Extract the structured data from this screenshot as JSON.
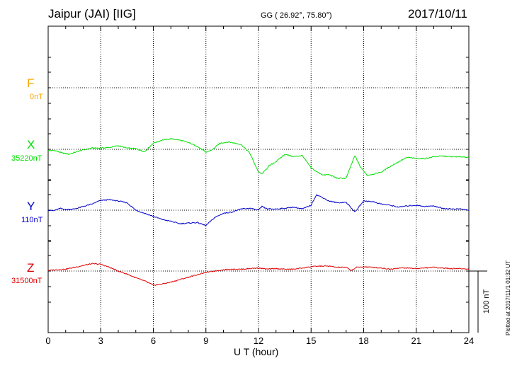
{
  "header": {
    "station": "Jaipur (JAI)  [IIG]",
    "coords": "GG ( 26.92°,  75.80°)",
    "date": "2017/10/11"
  },
  "footer": {
    "plotted": "Plotted at 2017/11/1 01:32 UT",
    "scale_bar": "100 nT"
  },
  "colors": {
    "F": "#ffa500",
    "X": "#00e000",
    "Y": "#0000cc",
    "Z": "#e00000"
  },
  "chart_data": {
    "type": "line",
    "xlabel": "U T (hour)",
    "xlim": [
      0,
      24
    ],
    "xticks": [
      0,
      3,
      6,
      9,
      12,
      15,
      18,
      21,
      24
    ],
    "unit_scale_nT": 100,
    "grid": true,
    "series": [
      {
        "name": "F",
        "baseline": "0nT",
        "x": [],
        "values": []
      },
      {
        "name": "X",
        "baseline": "35220nT",
        "x": [
          0,
          0.4,
          0.8,
          1.2,
          1.5,
          2,
          2.5,
          3,
          3.5,
          4,
          4.5,
          5,
          5.5,
          6,
          6.5,
          7,
          7.5,
          8,
          8.5,
          9,
          9.4,
          9.8,
          10.3,
          11,
          11.5,
          12,
          12.2,
          12.6,
          13,
          13.5,
          14,
          14.5,
          15,
          15.3,
          15.7,
          16,
          16.5,
          17,
          17.2,
          17.5,
          17.8,
          18.2,
          18.6,
          19,
          19.5,
          20,
          20.5,
          21,
          21.5,
          22,
          22.5,
          23,
          23.5,
          24
        ],
        "values": [
          -2,
          -2,
          -6,
          -8,
          -5,
          -1,
          2,
          2,
          3,
          6,
          2,
          1,
          -4,
          10,
          15,
          17,
          15,
          11,
          5,
          -5,
          0,
          10,
          12,
          8,
          -6,
          -37,
          -40,
          -27,
          -20,
          -8,
          -12,
          -10,
          -30,
          -36,
          -42,
          -41,
          -47,
          -47,
          -32,
          -10,
          -28,
          -42,
          -40,
          -37,
          -28,
          -20,
          -13,
          -15,
          -15,
          -12,
          -11,
          -12,
          -12,
          -13
        ]
      },
      {
        "name": "Y",
        "baseline": "110nT",
        "x": [
          0,
          0.3,
          0.7,
          1,
          1.5,
          2,
          2.5,
          3,
          3.5,
          4,
          4.5,
          5,
          5.5,
          6,
          6.5,
          7,
          7.5,
          8,
          8.5,
          9,
          9.5,
          10,
          10.5,
          11,
          11.5,
          12,
          12.2,
          12.5,
          13,
          13.5,
          14,
          14.5,
          15,
          15.3,
          15.7,
          16,
          16.5,
          17,
          17.5,
          18,
          18.5,
          19,
          19.5,
          20,
          20.5,
          21,
          21.5,
          22,
          22.5,
          23,
          23.5,
          24
        ],
        "values": [
          0,
          -1,
          3,
          1,
          2,
          6,
          10,
          16,
          17,
          15,
          12,
          0,
          -5,
          -10,
          -15,
          -18,
          -22,
          -21,
          -20,
          -25,
          -12,
          -5,
          -3,
          2,
          3,
          0,
          6,
          2,
          2,
          3,
          5,
          2,
          8,
          25,
          20,
          15,
          12,
          13,
          -3,
          15,
          14,
          10,
          8,
          5,
          7,
          8,
          6,
          7,
          3,
          2,
          2,
          0
        ]
      },
      {
        "name": "Z",
        "baseline": "31500nT",
        "x": [
          0,
          0.5,
          1,
          1.5,
          2,
          2.5,
          3,
          3.5,
          4,
          4.5,
          5,
          5.5,
          6,
          6.5,
          7,
          7.5,
          8,
          8.5,
          9,
          9.5,
          10,
          10.5,
          11,
          11.5,
          12,
          12.5,
          13,
          13.5,
          14,
          14.5,
          15,
          15.5,
          16,
          16.5,
          17,
          17.3,
          17.6,
          18,
          18.5,
          19,
          19.5,
          20,
          20.5,
          21,
          21.5,
          22,
          22.5,
          23,
          23.5,
          24
        ],
        "values": [
          1,
          2,
          3,
          6,
          9,
          12,
          11,
          6,
          0,
          -5,
          -11,
          -16,
          -23,
          -21,
          -18,
          -14,
          -10,
          -6,
          -2,
          0,
          2,
          3,
          3,
          4,
          5,
          3,
          4,
          3,
          3,
          5,
          7,
          8,
          8,
          6,
          6,
          1,
          6,
          7,
          6,
          5,
          3,
          5,
          5,
          4,
          5,
          6,
          5,
          4,
          4,
          3
        ]
      }
    ]
  }
}
